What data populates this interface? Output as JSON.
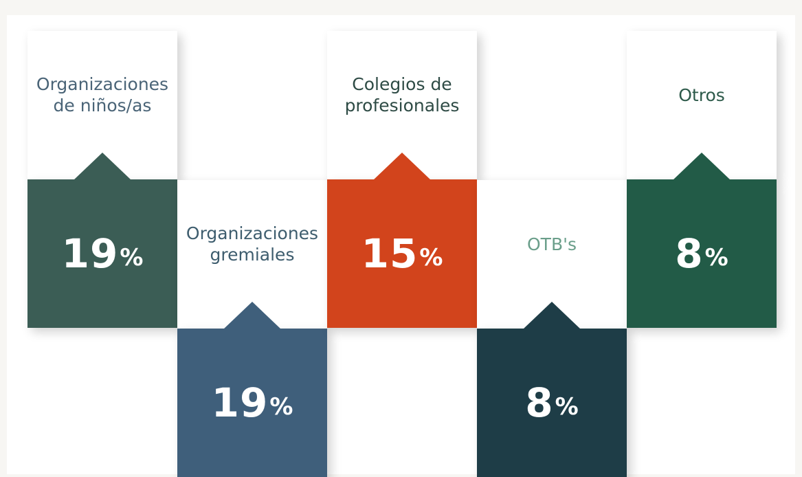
{
  "items": [
    {
      "label": "Organizaciones de niños/as",
      "value": 19,
      "unit": "%",
      "color": "#3b5d55",
      "text_color": "#4a6477"
    },
    {
      "label": "Organizaciones gremiales",
      "value": 19,
      "unit": "%",
      "color": "#3f5f7b",
      "text_color": "#3e5d6e"
    },
    {
      "label": "Colegios de profesionales",
      "value": 15,
      "unit": "%",
      "color": "#d2441c",
      "text_color": "#2e4b45"
    },
    {
      "label": "OTB's",
      "value": 8,
      "unit": "%",
      "color": "#1e3d47",
      "text_color": "#6a9e8a"
    },
    {
      "label": "Otros",
      "value": 8,
      "unit": "%",
      "color": "#225b47",
      "text_color": "#2d5a4a"
    }
  ]
}
